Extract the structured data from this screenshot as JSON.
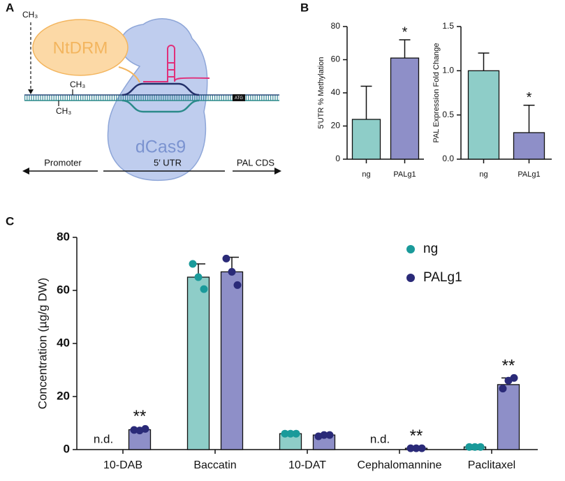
{
  "panel_labels": [
    "A",
    "B",
    "C"
  ],
  "diagram": {
    "enzyme": "NtDRM",
    "protein": "dCas9",
    "methyl_labels": [
      "CH₃",
      "CH₃",
      "CH₃"
    ],
    "start_codon": "ATG",
    "regions": [
      "Promoter",
      "5′ UTR",
      "PAL CDS"
    ]
  },
  "chart_data": [
    {
      "type": "bar",
      "ylabel": "5′UTR % Methylation",
      "categories": [
        "ng",
        "PALg1"
      ],
      "values": [
        24,
        61
      ],
      "errors": [
        20,
        11
      ],
      "colors": [
        "#8ecdc8",
        "#8e8fc8"
      ],
      "significance": [
        null,
        "*"
      ],
      "error_direction": "up",
      "ylim": [
        0,
        80
      ],
      "yticks": [
        0,
        20,
        40,
        60,
        80
      ]
    },
    {
      "type": "bar",
      "ylabel": "PAL Expression Fold Change",
      "categories": [
        "ng",
        "PALg1"
      ],
      "values": [
        1.0,
        0.3
      ],
      "errors": [
        0.2,
        0.31
      ],
      "colors": [
        "#8ecdc8",
        "#8e8fc8"
      ],
      "significance": [
        null,
        "*"
      ],
      "error_direction": "up",
      "ylim": [
        0,
        1.5
      ],
      "yticks": [
        {
          "value": 0,
          "label": "0.0"
        },
        0.5,
        {
          "value": 1,
          "label": "1.0"
        },
        1.5
      ]
    },
    {
      "type": "grouped_bar",
      "ylabel": "Concentration (µg/g DW)",
      "categories": [
        "10-DAB",
        "Baccatin",
        "10-DAT",
        "Cephalomannine",
        "Paclitaxel"
      ],
      "error_direction": "both",
      "ylim": [
        0,
        80
      ],
      "yticks": [
        0,
        20,
        40,
        60,
        80
      ],
      "legend": "top-right",
      "series": [
        {
          "name": "ng",
          "color": "#8ecdc8",
          "point_color": "#1a9a9a",
          "values": [
            null,
            65,
            6,
            null,
            1
          ],
          "errors": [
            null,
            5,
            0.5,
            null,
            0.2
          ],
          "points": [
            null,
            [
              70,
              60.5,
              65
            ],
            [
              6,
              6,
              6
            ],
            null,
            [
              1,
              1,
              1
            ]
          ],
          "value_labels": [
            "n.d.",
            null,
            null,
            "n.d.",
            null
          ],
          "significance": [
            null,
            null,
            null,
            null,
            null
          ]
        },
        {
          "name": "PALg1",
          "color": "#8e8fc8",
          "point_color": "#2a2a78",
          "values": [
            7.5,
            67,
            5.5,
            0.5,
            24.5
          ],
          "errors": [
            0.5,
            5.5,
            0.5,
            0.1,
            2.5
          ],
          "points": [
            [
              7.4,
              7.8,
              7.2
            ],
            [
              72,
              62,
              67
            ],
            [
              5,
              5.5,
              5.5
            ],
            [
              0.5,
              0.5,
              0.5
            ],
            [
              23,
              27,
              26
            ]
          ],
          "value_labels": [
            null,
            null,
            null,
            null,
            null
          ],
          "significance": [
            "**",
            null,
            null,
            "**",
            "**"
          ]
        }
      ]
    }
  ]
}
